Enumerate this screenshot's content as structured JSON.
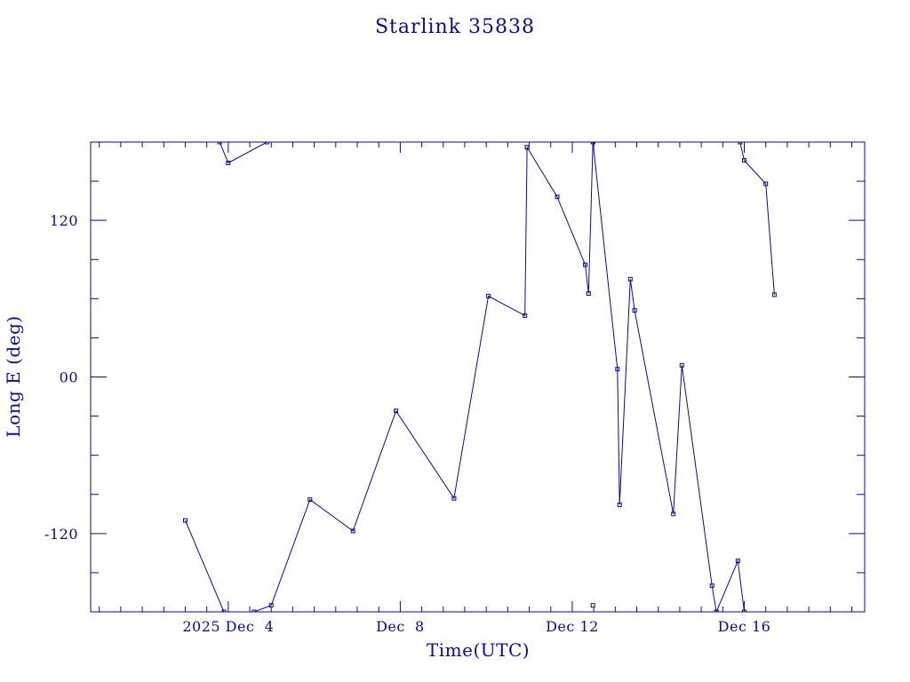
{
  "chart_data": {
    "type": "line",
    "title": "Starlink 35838",
    "xlabel": "Time(UTC)",
    "ylabel": "Long E (deg)",
    "x_unit": "days of December 2025 (UTC)",
    "xlim": [
      0.8,
      18.8
    ],
    "ylim": [
      -180,
      180
    ],
    "x_ticks": [
      {
        "value": 4,
        "label": "2025 Dec  4"
      },
      {
        "value": 8,
        "label": "Dec  8"
      },
      {
        "value": 12,
        "label": "Dec 12"
      },
      {
        "value": 16,
        "label": "Dec 16"
      }
    ],
    "y_ticks": [
      {
        "value": 120,
        "label": "120"
      },
      {
        "value": 0,
        "label": "00"
      },
      {
        "value": -120,
        "label": "-120"
      }
    ],
    "grid": false,
    "markers": "open-square",
    "segments": [
      [
        [
          3.0,
          -110
        ],
        [
          3.9,
          -180
        ]
      ],
      [
        [
          3.8,
          180
        ],
        [
          4.0,
          164
        ],
        [
          4.9,
          180
        ]
      ],
      [
        [
          4.6,
          -180
        ],
        [
          5.0,
          -175
        ],
        [
          5.9,
          -94
        ],
        [
          6.9,
          -118
        ],
        [
          7.9,
          -26
        ],
        [
          9.25,
          -93
        ],
        [
          10.05,
          62
        ],
        [
          10.9,
          47
        ],
        [
          10.95,
          176
        ]
      ],
      [
        [
          10.95,
          176
        ],
        [
          11.65,
          138
        ],
        [
          12.3,
          86
        ],
        [
          12.38,
          64
        ],
        [
          12.48,
          180
        ]
      ],
      [
        [
          12.48,
          180
        ],
        [
          13.05,
          6
        ],
        [
          13.1,
          -98
        ],
        [
          13.35,
          75
        ],
        [
          13.45,
          51
        ],
        [
          14.35,
          -105
        ],
        [
          14.55,
          9
        ],
        [
          15.25,
          -160
        ],
        [
          15.35,
          -180
        ]
      ],
      [
        [
          15.35,
          -180
        ],
        [
          15.85,
          -141
        ],
        [
          16.0,
          -180
        ]
      ],
      [
        [
          15.9,
          180
        ],
        [
          16.0,
          166
        ],
        [
          16.5,
          148
        ],
        [
          16.7,
          63
        ]
      ]
    ],
    "isolated_points": [
      [
        12.48,
        -175
      ]
    ]
  }
}
